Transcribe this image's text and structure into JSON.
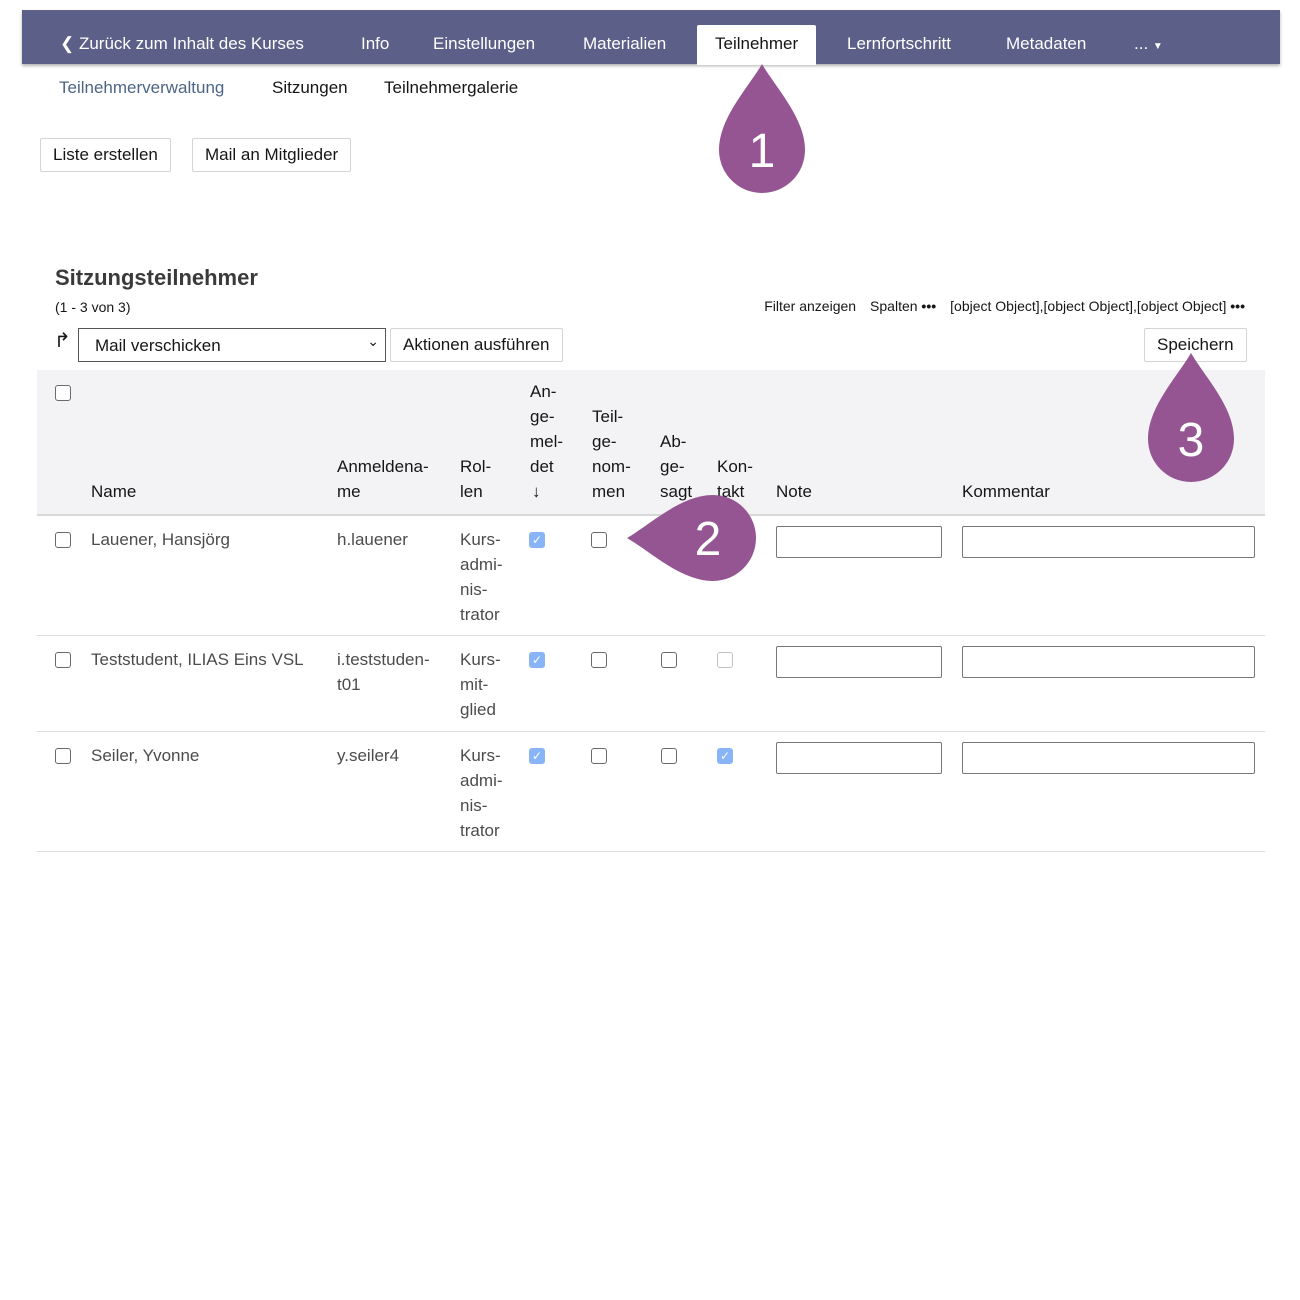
{
  "topnav": {
    "back": "Zurück zum Inhalt des Kurses",
    "tabs": [
      "Info",
      "Einstellungen",
      "Materialien",
      "Teilnehmer",
      "Lernfortschritt",
      "Metadaten",
      "..."
    ],
    "active": "Teilnehmer",
    "bg": "#5c5f87"
  },
  "subtabs": [
    "Teilnehmerverwaltung",
    "Sitzungen",
    "Teilnehmergalerie"
  ],
  "toolbar": {
    "list": "Liste erstellen",
    "mail": "Mail an Mitglieder"
  },
  "table": {
    "title": "Sitzungsteilnehmer",
    "count": "(1 - 3 von 3)",
    "filter": "Filter anzeigen",
    "columns": "Spalten",
    "rows": [
      {
        "name": "Lauener, Hansjörg",
        "login": "h.lauener",
        "role": "Kurs-\nadmi-\nnis-\ntrator",
        "registered": true,
        "participated": false,
        "excused": false,
        "contact": false,
        "note": "",
        "comment": ""
      },
      {
        "name": "Teststudent, ILIAS Eins VSL",
        "login": "i.teststuden-\nt01",
        "role": "Kurs-\nmit-\nglied",
        "registered": true,
        "participated": false,
        "excused": false,
        "contact": false,
        "note": "",
        "comment": ""
      },
      {
        "name": "Seiler, Yvonne",
        "login": "y.seiler4",
        "role": "Kurs-\nadmi-\nnis-\ntrator",
        "registered": true,
        "participated": false,
        "excused": false,
        "contact": true,
        "note": "",
        "comment": ""
      }
    ],
    "action_select": "Mail verschicken",
    "action_button": "Aktionen ausführen",
    "save": "Speichern",
    "headers": {
      "name": "Name",
      "login": "Anmeldena-\nme",
      "role": "Rol-\nlen",
      "registered": "An-\nge-\nmel-\ndet",
      "participated": "Teil-\nge-\nnom-\nmen",
      "excused": "Ab-\nge-\nsagt",
      "contact": "Kon-\ntakt",
      "note": "Note",
      "comment": "Kommentar"
    },
    "sort_icon": "arrow-down-icon"
  },
  "markers": [
    "1",
    "2",
    "3"
  ],
  "marker_color": "#955592"
}
